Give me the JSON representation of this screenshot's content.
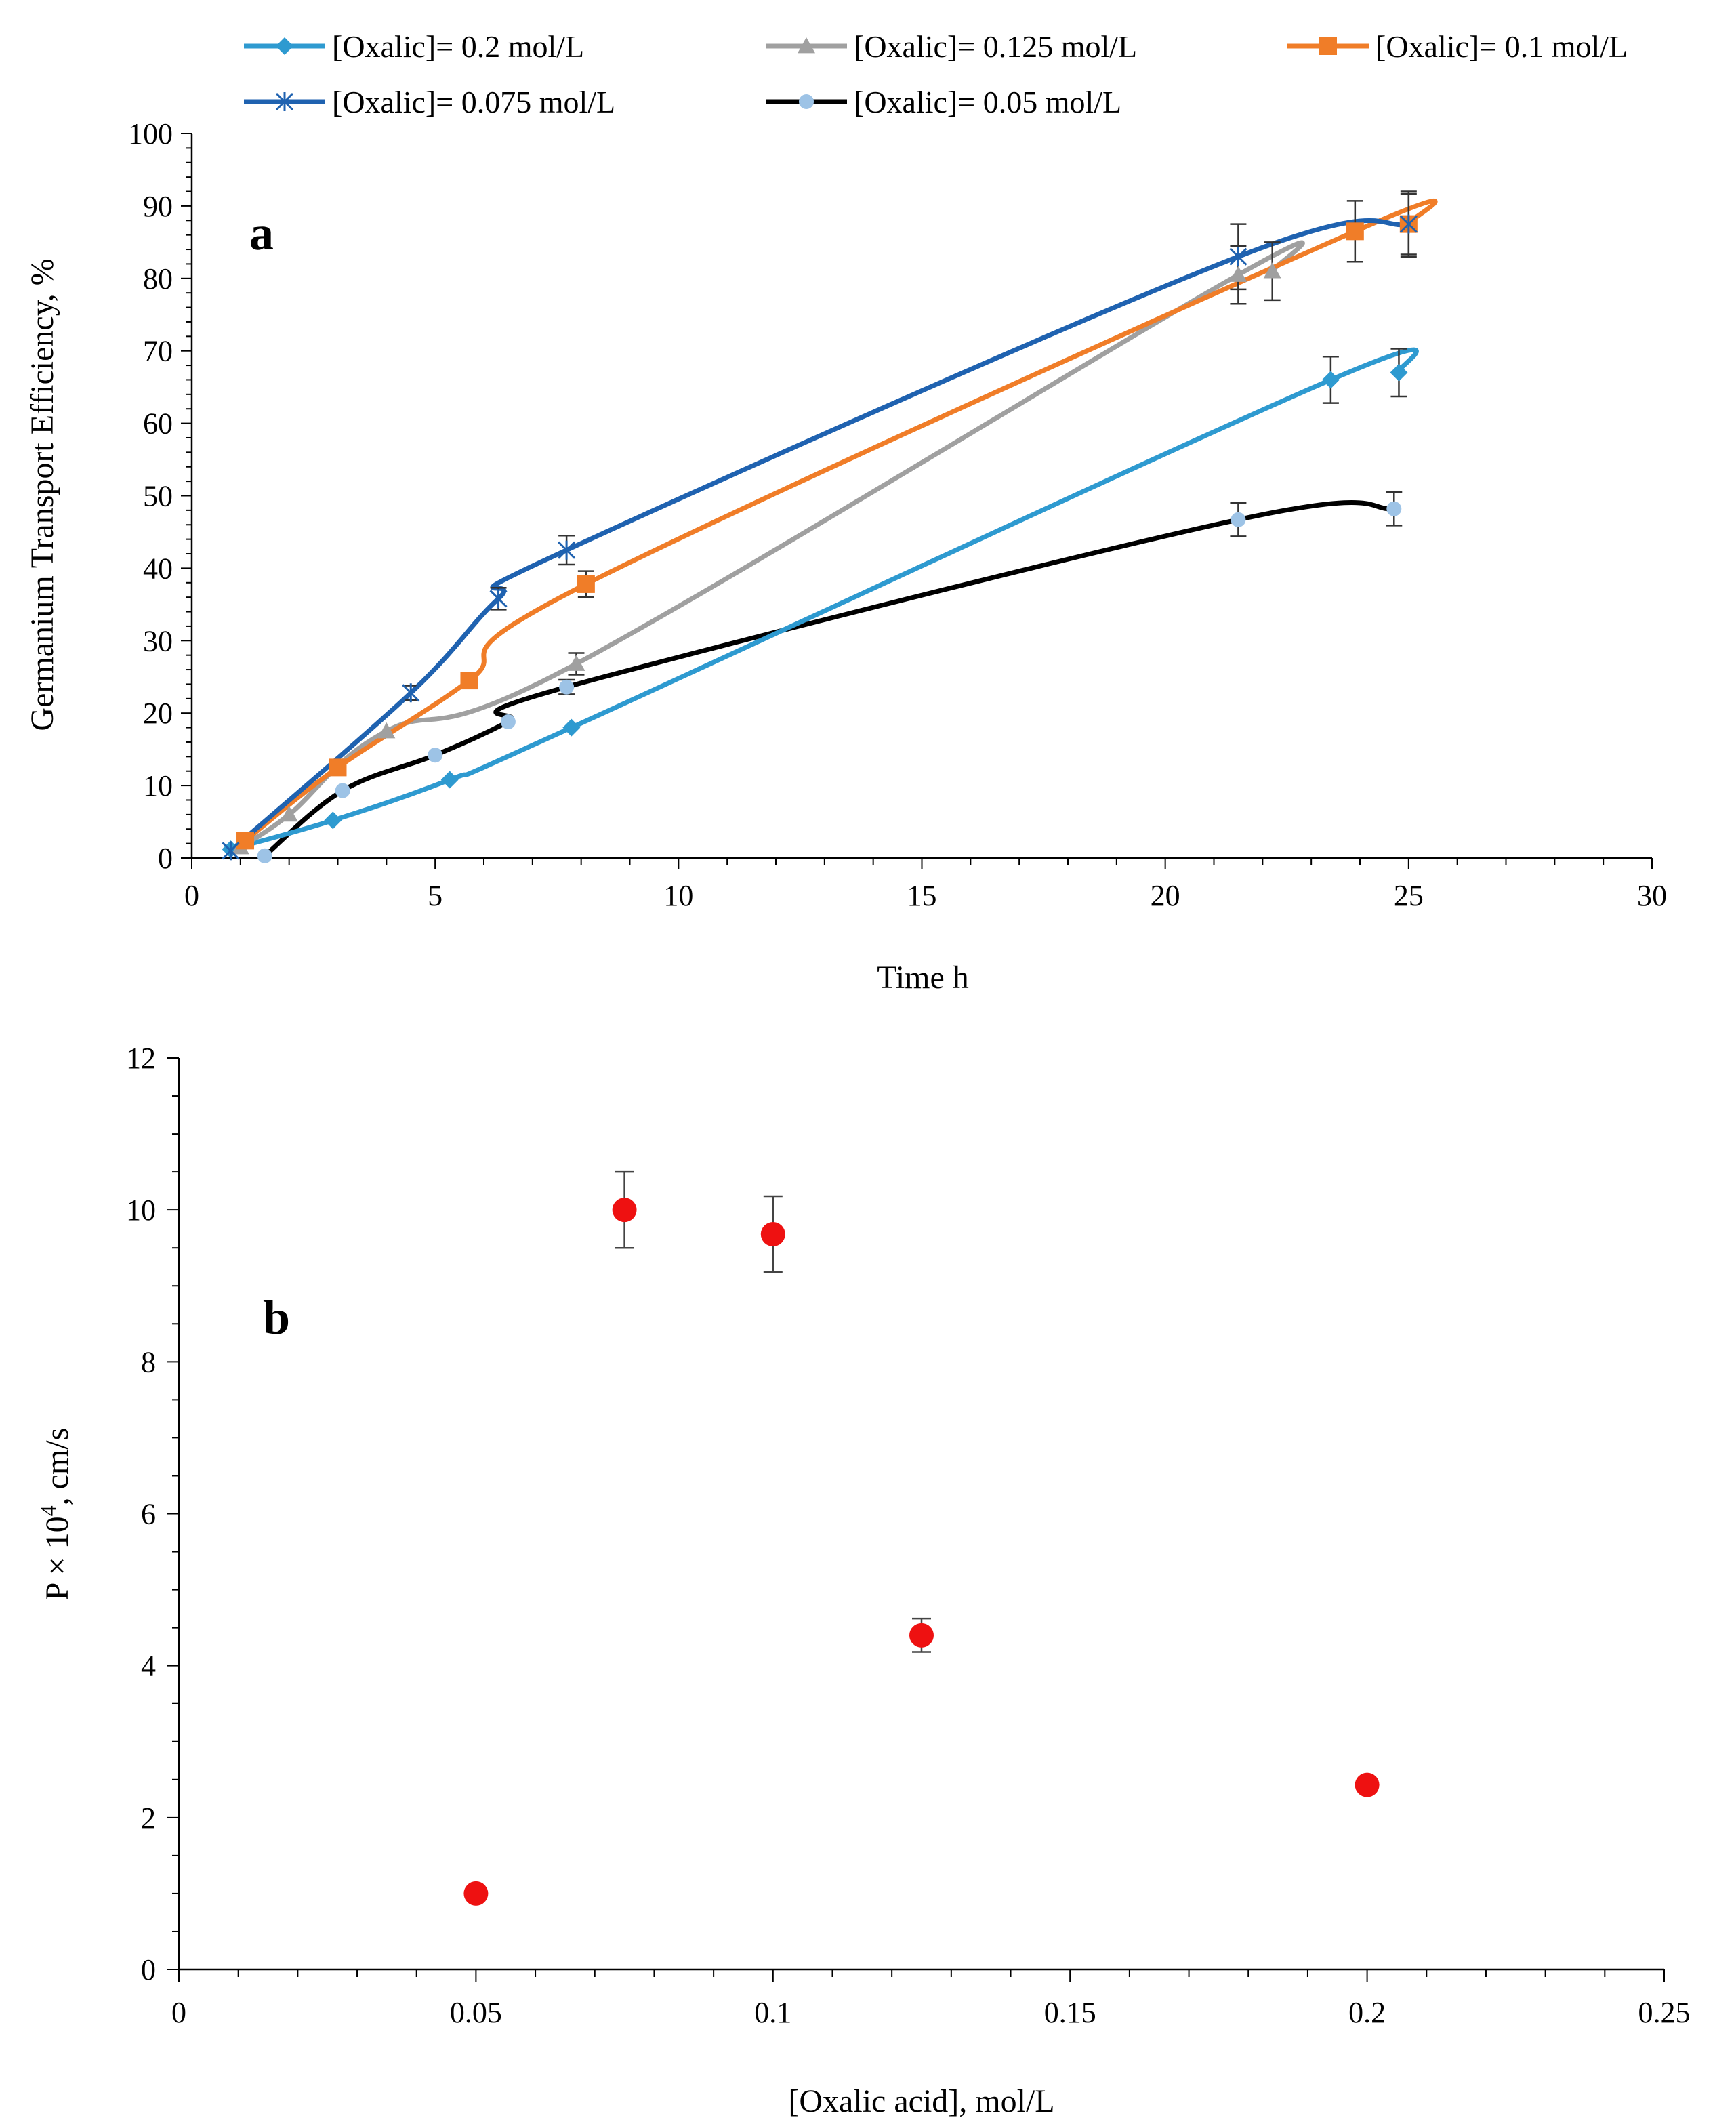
{
  "chart_data": [
    {
      "panel": "a",
      "type": "line",
      "xlabel": "Time h",
      "ylabel": "Germanium Transport Efficiency, %",
      "xlim": [
        0,
        30
      ],
      "ylim": [
        0,
        100
      ],
      "xticks": [
        0,
        5,
        10,
        15,
        20,
        25,
        30
      ],
      "yticks": [
        0,
        10,
        20,
        30,
        40,
        50,
        60,
        70,
        80,
        90,
        100
      ],
      "legend_position": "top",
      "series": [
        {
          "name": "[Oxalic]= 0.2 mol/L",
          "color": "#2E9AD0",
          "marker": "diamond",
          "x": [
            0.8,
            2.9,
            5.3,
            7.8,
            23.4,
            24.8
          ],
          "y": [
            1.2,
            5.2,
            10.8,
            18.0,
            66.0,
            67.0
          ],
          "err": [
            0,
            0,
            0,
            0,
            3.2,
            3.3
          ]
        },
        {
          "name": "[Oxalic]= 0.125 mol/L",
          "color": "#A0A0A0",
          "marker": "triangle",
          "x": [
            1.0,
            2.0,
            4.0,
            7.9,
            21.5,
            22.2
          ],
          "y": [
            1.5,
            6.0,
            17.5,
            26.8,
            80.5,
            81.0
          ],
          "err": [
            0,
            0,
            0,
            1.5,
            4.0,
            4.0
          ]
        },
        {
          "name": "[Oxalic]= 0.1 mol/L",
          "color": "#F07D28",
          "marker": "square",
          "x": [
            1.1,
            3.0,
            5.7,
            8.1,
            23.9,
            25.0
          ],
          "y": [
            2.4,
            12.5,
            24.5,
            37.8,
            86.5,
            87.5
          ],
          "err": [
            0,
            0,
            0,
            1.8,
            4.2,
            4.2
          ]
        },
        {
          "name": "[Oxalic]= 0.075 mol/L",
          "color": "#1F62B0",
          "marker": "asterisk",
          "x": [
            0.8,
            4.5,
            6.3,
            7.7,
            21.5,
            25.0
          ],
          "y": [
            1.0,
            22.8,
            35.8,
            42.5,
            83.0,
            87.5
          ],
          "err": [
            0,
            1.0,
            1.5,
            2.0,
            4.5,
            4.5
          ]
        },
        {
          "name": "[Oxalic]= 0.05 mol/L",
          "color": "#000000",
          "marker_color": "#9DC3E6",
          "marker": "circle",
          "x": [
            1.5,
            3.1,
            5.0,
            6.5,
            7.7,
            21.5,
            24.7
          ],
          "y": [
            0.3,
            9.3,
            14.2,
            18.8,
            23.6,
            46.7,
            48.2
          ],
          "err": [
            0,
            0,
            0,
            0,
            1.0,
            2.3,
            2.3
          ]
        }
      ],
      "legend_entries": [
        "[Oxalic]= 0.2 mol/L",
        "[Oxalic]= 0.125 mol/L",
        "[Oxalic]= 0.1 mol/L",
        "[Oxalic]= 0.075 mol/L",
        "[Oxalic]= 0.05 mol/L"
      ]
    },
    {
      "panel": "b",
      "type": "scatter",
      "xlabel": "[Oxalic acid], mol/L",
      "ylabel_parts": [
        "P × 10",
        "4",
        ", cm/s"
      ],
      "xlim": [
        0,
        0.25
      ],
      "ylim": [
        0,
        12
      ],
      "xticks": [
        "0",
        "0.05",
        "0.1",
        "0.15",
        "0.2",
        "0.25"
      ],
      "yticks": [
        "0",
        "2",
        "4",
        "6",
        "8",
        "10",
        "12"
      ],
      "marker_color": "#EE1111",
      "x": [
        0.05,
        0.075,
        0.1,
        0.125,
        0.2
      ],
      "y": [
        1.0,
        10.0,
        9.68,
        4.4,
        2.43
      ],
      "err": [
        0,
        0.5,
        0.5,
        0.22,
        0
      ]
    }
  ]
}
